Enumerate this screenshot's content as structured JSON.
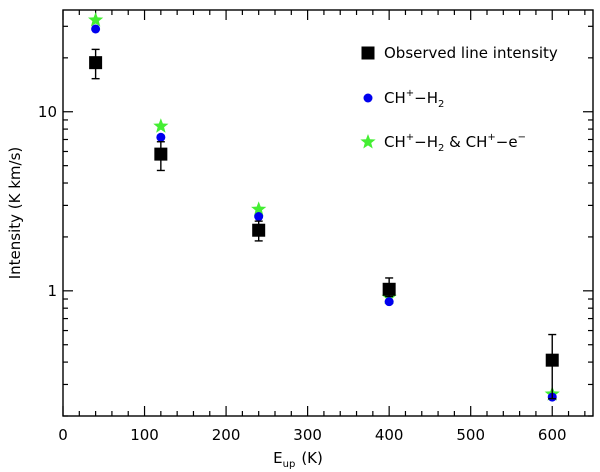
{
  "chart_data": {
    "type": "scatter",
    "xlabel": "E",
    "xlabel_sub": "up",
    "xlabel_unit": "(K)",
    "ylabel": "Intensity (K km/s)",
    "xlim": [
      0,
      650
    ],
    "ylim": [
      0.2,
      37
    ],
    "yscale": "log",
    "x_ticks": [
      "0",
      "100",
      "200",
      "300",
      "400",
      "500",
      "600"
    ],
    "y_ticks": [
      "1",
      "10"
    ],
    "legend_position": "top-right",
    "series": [
      {
        "name": "Observed line intensity",
        "marker": "square",
        "color": "#000000",
        "x": [
          40,
          120,
          240,
          400,
          600
        ],
        "y": [
          18.8,
          5.8,
          2.18,
          1.02,
          0.41
        ],
        "err_lo": [
          15.3,
          4.7,
          1.9,
          0.93,
          0.25
        ],
        "err_hi": [
          22.3,
          6.8,
          2.45,
          1.18,
          0.57
        ]
      },
      {
        "name_parts": [
          "CH",
          "+",
          "−H",
          "2"
        ],
        "marker": "circle",
        "color": "#0000ee",
        "x": [
          40,
          120,
          240,
          400,
          600
        ],
        "y": [
          29,
          7.2,
          2.6,
          0.87,
          0.255
        ]
      },
      {
        "name_parts": [
          "CH",
          "+",
          "−H",
          "2",
          " & CH",
          "+",
          "−e",
          "−"
        ],
        "marker": "star",
        "color": "#44ee33",
        "x": [
          40,
          120,
          240,
          400,
          600
        ],
        "y": [
          32.5,
          8.3,
          2.85,
          0.92,
          0.265
        ]
      }
    ]
  }
}
